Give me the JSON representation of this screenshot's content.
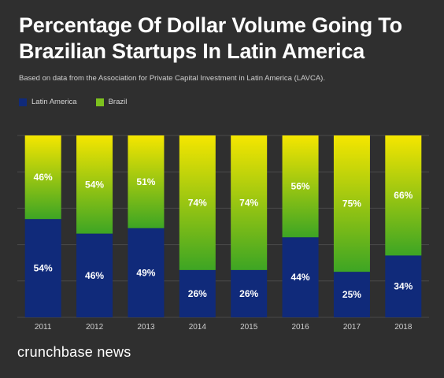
{
  "chart_data": {
    "type": "bar",
    "stacked": true,
    "title": "Percentage Of Dollar Volume Going To Brazilian Startups In Latin America",
    "subtitle": "Based on data from the Association for Private Capital Investment in Latin America (LAVCA).",
    "categories": [
      "2011",
      "2012",
      "2013",
      "2014",
      "2015",
      "2016",
      "2017",
      "2018"
    ],
    "series": [
      {
        "name": "Latin America",
        "values": [
          54,
          46,
          49,
          26,
          26,
          44,
          25,
          34
        ],
        "color": "#102a7a",
        "labels": [
          "54%",
          "46%",
          "49%",
          "26%",
          "26%",
          "44%",
          "25%",
          "34%"
        ]
      },
      {
        "name": "Brazil",
        "values": [
          46,
          54,
          51,
          74,
          74,
          56,
          75,
          66
        ],
        "color": "#7dc21e",
        "labels": [
          "46%",
          "54%",
          "51%",
          "74%",
          "74%",
          "56%",
          "75%",
          "66%"
        ]
      }
    ],
    "ylim": [
      0,
      100
    ],
    "grid": true,
    "legend": "top-left"
  },
  "colors": {
    "background": "#2f2f2f",
    "latin_america": "#102a7a",
    "brazil_top": "#f5e600",
    "brazil_bottom": "#3da524",
    "brazil_swatch": "#7dc21e"
  },
  "brand": "crunchbase news"
}
